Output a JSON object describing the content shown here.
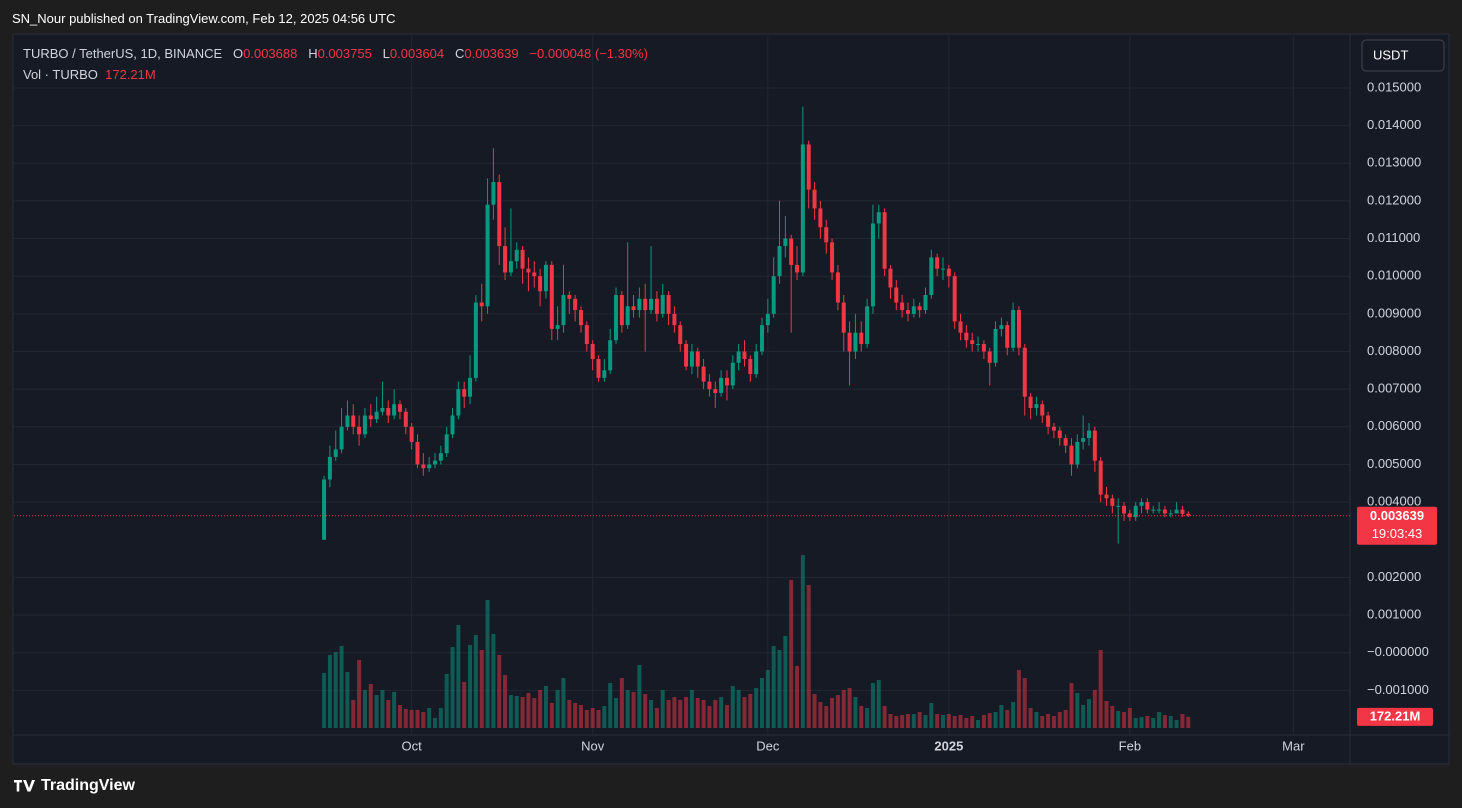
{
  "header": {
    "publisher": "SN_Nour published on TradingView.com, Feb 12, 2025 04:56 UTC"
  },
  "footer": {
    "brand": "TradingView"
  },
  "chart_data": {
    "type": "candlestick",
    "symbol": "TURBO / TetherUS, 1D, BINANCE",
    "ohlc_labels": [
      "O",
      "H",
      "L",
      "C"
    ],
    "change": "−0.000048 (−1.30%)",
    "volume_title": "Vol · TURBO",
    "currency": "USDT",
    "countdown": "19:03:43",
    "up_color": "#089981",
    "down_color": "#f23645",
    "grid": true,
    "xlim": [
      -53.1,
      175.7
    ],
    "xticks": [
      {
        "value": 15,
        "label": "Oct"
      },
      {
        "value": 46,
        "label": "Nov"
      },
      {
        "value": 76,
        "label": "Dec"
      },
      {
        "value": 107,
        "label": "2025"
      },
      {
        "value": 138,
        "label": "Feb"
      },
      {
        "value": 166,
        "label": "Mar"
      }
    ],
    "ylim": [
      -0.002,
      0.01638
    ],
    "yticks": [
      {
        "value": 0.015,
        "label": "0.015000"
      },
      {
        "value": 0.014,
        "label": "0.014000"
      },
      {
        "value": 0.013,
        "label": "0.013000"
      },
      {
        "value": 0.012,
        "label": "0.012000"
      },
      {
        "value": 0.011,
        "label": "0.011000"
      },
      {
        "value": 0.01,
        "label": "0.010000"
      },
      {
        "value": 0.009,
        "label": "0.009000"
      },
      {
        "value": 0.008,
        "label": "0.008000"
      },
      {
        "value": 0.007,
        "label": "0.007000"
      },
      {
        "value": 0.006,
        "label": "0.006000"
      },
      {
        "value": 0.005,
        "label": "0.005000"
      },
      {
        "value": 0.004,
        "label": "0.004000"
      },
      {
        "value": 0.002,
        "label": "0.002000"
      },
      {
        "value": 0.001,
        "label": "0.001000"
      },
      {
        "value": 0,
        "label": "−0.000000"
      },
      {
        "value": -0.001,
        "label": "−0.001000"
      }
    ],
    "volume_lim": [
      0,
      2800
    ],
    "open": [
      0.003,
      0.0046,
      0.0052,
      0.0054,
      0.006,
      0.0063,
      0.006,
      0.0058,
      0.0063,
      0.0062,
      0.0064,
      0.0065,
      0.0063,
      0.0066,
      0.0064,
      0.006,
      0.0056,
      0.005,
      0.0049,
      0.005,
      0.0051,
      0.0053,
      0.0058,
      0.0063,
      0.007,
      0.0068,
      0.0073,
      0.0093,
      0.0092,
      0.0119,
      0.0125,
      0.0108,
      0.0101,
      0.0104,
      0.0107,
      0.0102,
      0.0101,
      0.01,
      0.0096,
      0.0103,
      0.0086,
      0.0087,
      0.0095,
      0.0094,
      0.0091,
      0.0087,
      0.0082,
      0.0078,
      0.0073,
      0.0075,
      0.0083,
      0.0095,
      0.0087,
      0.0092,
      0.0091,
      0.0094,
      0.0091,
      0.0094,
      0.009,
      0.0095,
      0.009,
      0.0087,
      0.0082,
      0.0076,
      0.008,
      0.0076,
      0.0072,
      0.007,
      0.0069,
      0.0073,
      0.0071,
      0.0077,
      0.008,
      0.0078,
      0.0074,
      0.008,
      0.0087,
      0.009,
      0.01,
      0.0108,
      0.011,
      0.0103,
      0.0101,
      0.0135,
      0.0123,
      0.0118,
      0.0113,
      0.0109,
      0.0101,
      0.0093,
      0.0085,
      0.008,
      0.0085,
      0.0082,
      0.0092,
      0.0114,
      0.0117,
      0.0102,
      0.0097,
      0.0093,
      0.0091,
      0.009,
      0.0092,
      0.0091,
      0.0095,
      0.0105,
      0.0102,
      0.0102,
      0.01,
      0.0088,
      0.0085,
      0.0083,
      0.0082,
      0.0082,
      0.008,
      0.0077,
      0.0086,
      0.0087,
      0.0081,
      0.0091,
      0.0081,
      0.0068,
      0.0065,
      0.0066,
      0.0063,
      0.006,
      0.0059,
      0.0057,
      0.0055,
      0.005,
      0.0056,
      0.0057,
      0.0059,
      0.0051,
      0.0042,
      0.0041,
      0.0039,
      0.0039,
      0.0037,
      0.0036,
      0.0039,
      0.004,
      0.0038,
      0.0038,
      0.0038,
      0.0037,
      0.0037,
      0.0038,
      0.003688
    ],
    "high": [
      0.0047,
      0.0055,
      0.0059,
      0.0065,
      0.0067,
      0.0066,
      0.0063,
      0.0065,
      0.0066,
      0.0068,
      0.0072,
      0.0067,
      0.007,
      0.0067,
      0.0065,
      0.0061,
      0.0058,
      0.0053,
      0.0052,
      0.0053,
      0.0055,
      0.006,
      0.0065,
      0.0072,
      0.0072,
      0.0079,
      0.0095,
      0.0098,
      0.0126,
      0.0134,
      0.0127,
      0.0113,
      0.0118,
      0.0109,
      0.0108,
      0.0105,
      0.0104,
      0.0102,
      0.0104,
      0.0104,
      0.0092,
      0.0103,
      0.0096,
      0.0095,
      0.0092,
      0.0088,
      0.0083,
      0.0079,
      0.0078,
      0.0086,
      0.0097,
      0.0096,
      0.0109,
      0.0095,
      0.0097,
      0.0098,
      0.0108,
      0.0096,
      0.0098,
      0.0096,
      0.0092,
      0.0088,
      0.0083,
      0.0082,
      0.0081,
      0.0078,
      0.0074,
      0.0072,
      0.0075,
      0.0075,
      0.0079,
      0.0082,
      0.0083,
      0.0079,
      0.0082,
      0.0089,
      0.0094,
      0.0105,
      0.012,
      0.0116,
      0.0111,
      0.0108,
      0.0145,
      0.0136,
      0.0125,
      0.012,
      0.0115,
      0.011,
      0.0103,
      0.0095,
      0.0088,
      0.009,
      0.0088,
      0.0094,
      0.0119,
      0.0119,
      0.0118,
      0.0103,
      0.0099,
      0.0095,
      0.0093,
      0.0094,
      0.0093,
      0.0097,
      0.0107,
      0.0106,
      0.0105,
      0.0103,
      0.0101,
      0.009,
      0.0087,
      0.0085,
      0.0084,
      0.0083,
      0.0081,
      0.0088,
      0.0089,
      0.0088,
      0.0093,
      0.0092,
      0.0082,
      0.0069,
      0.0068,
      0.0067,
      0.0064,
      0.0061,
      0.006,
      0.0058,
      0.0057,
      0.0058,
      0.0063,
      0.0061,
      0.006,
      0.0052,
      0.0044,
      0.0042,
      0.0041,
      0.004,
      0.0038,
      0.004,
      0.0041,
      0.0041,
      0.0039,
      0.004,
      0.0039,
      0.0038,
      0.004,
      0.0039,
      0.003755
    ],
    "low": [
      0.003,
      0.0044,
      0.0051,
      0.0053,
      0.0059,
      0.0058,
      0.0055,
      0.0057,
      0.006,
      0.0061,
      0.0063,
      0.0061,
      0.0062,
      0.0062,
      0.0058,
      0.0054,
      0.0049,
      0.0047,
      0.0048,
      0.0049,
      0.005,
      0.0052,
      0.0057,
      0.0062,
      0.0065,
      0.0066,
      0.0072,
      0.0088,
      0.009,
      0.0115,
      0.0103,
      0.0099,
      0.01,
      0.0102,
      0.0098,
      0.0096,
      0.0097,
      0.0092,
      0.0094,
      0.0083,
      0.0083,
      0.0085,
      0.009,
      0.0088,
      0.0085,
      0.008,
      0.0075,
      0.0072,
      0.0072,
      0.0074,
      0.0082,
      0.0085,
      0.0086,
      0.0089,
      0.0089,
      0.008,
      0.009,
      0.0088,
      0.0089,
      0.0087,
      0.0085,
      0.008,
      0.0075,
      0.0074,
      0.0073,
      0.007,
      0.0068,
      0.0065,
      0.0068,
      0.0067,
      0.007,
      0.0075,
      0.0076,
      0.0072,
      0.0073,
      0.0079,
      0.0085,
      0.0089,
      0.0098,
      0.0105,
      0.0085,
      0.0099,
      0.01,
      0.0118,
      0.0115,
      0.011,
      0.0106,
      0.0099,
      0.0091,
      0.008,
      0.0071,
      0.0078,
      0.008,
      0.0081,
      0.009,
      0.011,
      0.01,
      0.0094,
      0.0091,
      0.0089,
      0.0088,
      0.0089,
      0.0089,
      0.009,
      0.0094,
      0.01,
      0.0099,
      0.0097,
      0.0086,
      0.0083,
      0.0081,
      0.008,
      0.008,
      0.0078,
      0.0071,
      0.0076,
      0.0084,
      0.0079,
      0.008,
      0.0079,
      0.0063,
      0.0062,
      0.0063,
      0.0061,
      0.0058,
      0.0057,
      0.0055,
      0.0053,
      0.0047,
      0.0049,
      0.0054,
      0.0055,
      0.0048,
      0.004,
      0.0039,
      0.0037,
      0.0029,
      0.0035,
      0.0035,
      0.0035,
      0.0037,
      0.0037,
      0.0037,
      0.0037,
      0.0036,
      0.0036,
      0.0037,
      0.0036,
      0.003604
    ],
    "close": [
      0.0046,
      0.0052,
      0.0054,
      0.006,
      0.0063,
      0.006,
      0.0058,
      0.0063,
      0.0062,
      0.0064,
      0.0065,
      0.0063,
      0.0066,
      0.0064,
      0.006,
      0.0056,
      0.005,
      0.0049,
      0.005,
      0.0051,
      0.0053,
      0.0058,
      0.0063,
      0.007,
      0.0068,
      0.0073,
      0.0093,
      0.0092,
      0.0119,
      0.0125,
      0.0108,
      0.0101,
      0.0104,
      0.0107,
      0.0102,
      0.0101,
      0.01,
      0.0096,
      0.0103,
      0.0086,
      0.0087,
      0.0095,
      0.0094,
      0.0091,
      0.0087,
      0.0082,
      0.0078,
      0.0073,
      0.0075,
      0.0083,
      0.0095,
      0.0087,
      0.0092,
      0.0091,
      0.0094,
      0.0091,
      0.0094,
      0.009,
      0.0095,
      0.009,
      0.0087,
      0.0082,
      0.0076,
      0.008,
      0.0076,
      0.0072,
      0.007,
      0.0069,
      0.0073,
      0.0071,
      0.0077,
      0.008,
      0.0078,
      0.0074,
      0.008,
      0.0087,
      0.009,
      0.01,
      0.0108,
      0.011,
      0.0103,
      0.0101,
      0.0135,
      0.0123,
      0.0118,
      0.0113,
      0.0109,
      0.0101,
      0.0093,
      0.0085,
      0.008,
      0.0085,
      0.0082,
      0.0092,
      0.0114,
      0.0117,
      0.0102,
      0.0097,
      0.0093,
      0.0091,
      0.009,
      0.0092,
      0.0091,
      0.0095,
      0.0105,
      0.0102,
      0.0102,
      0.01,
      0.0088,
      0.0085,
      0.0083,
      0.0082,
      0.0082,
      0.008,
      0.0077,
      0.0086,
      0.0087,
      0.0081,
      0.0091,
      0.0081,
      0.0068,
      0.0065,
      0.0066,
      0.0063,
      0.006,
      0.0059,
      0.0057,
      0.0055,
      0.005,
      0.0056,
      0.0057,
      0.0059,
      0.0051,
      0.0042,
      0.0041,
      0.0039,
      0.0039,
      0.0037,
      0.0036,
      0.0039,
      0.004,
      0.0038,
      0.0038,
      0.0038,
      0.0037,
      0.0037,
      0.0038,
      0.003688,
      0.003639
    ],
    "volume": [
      856,
      1136,
      1183,
      1276,
      871,
      436,
      1058,
      591,
      685,
      513,
      591,
      436,
      560,
      358,
      296,
      280,
      280,
      249,
      311,
      156,
      311,
      840,
      1260,
      1603,
      716,
      1291,
      1447,
      1214,
      1992,
      1463,
      1136,
      825,
      513,
      498,
      482,
      545,
      467,
      591,
      654,
      389,
      591,
      778,
      436,
      389,
      358,
      280,
      311,
      280,
      342,
      700,
      467,
      778,
      591,
      560,
      980,
      529,
      436,
      311,
      591,
      436,
      482,
      436,
      482,
      591,
      467,
      436,
      342,
      436,
      482,
      358,
      654,
      591,
      482,
      529,
      622,
      778,
      902,
      1276,
      1214,
      1432,
      2303,
      965,
      2692,
      2225,
      529,
      405,
      342,
      467,
      513,
      591,
      622,
      482,
      342,
      311,
      700,
      747,
      342,
      218,
      187,
      202,
      218,
      218,
      249,
      202,
      389,
      218,
      202,
      218,
      187,
      202,
      156,
      187,
      124,
      202,
      233,
      249,
      358,
      280,
      405,
      902,
      778,
      311,
      249,
      187,
      218,
      187,
      249,
      280,
      700,
      545,
      358,
      451,
      591,
      1214,
      420,
      342,
      265,
      249,
      311,
      156,
      171,
      187,
      156,
      249,
      202,
      187,
      124,
      218,
      172.21
    ],
    "volume_labels": {
      "148": "172.21M"
    }
  }
}
